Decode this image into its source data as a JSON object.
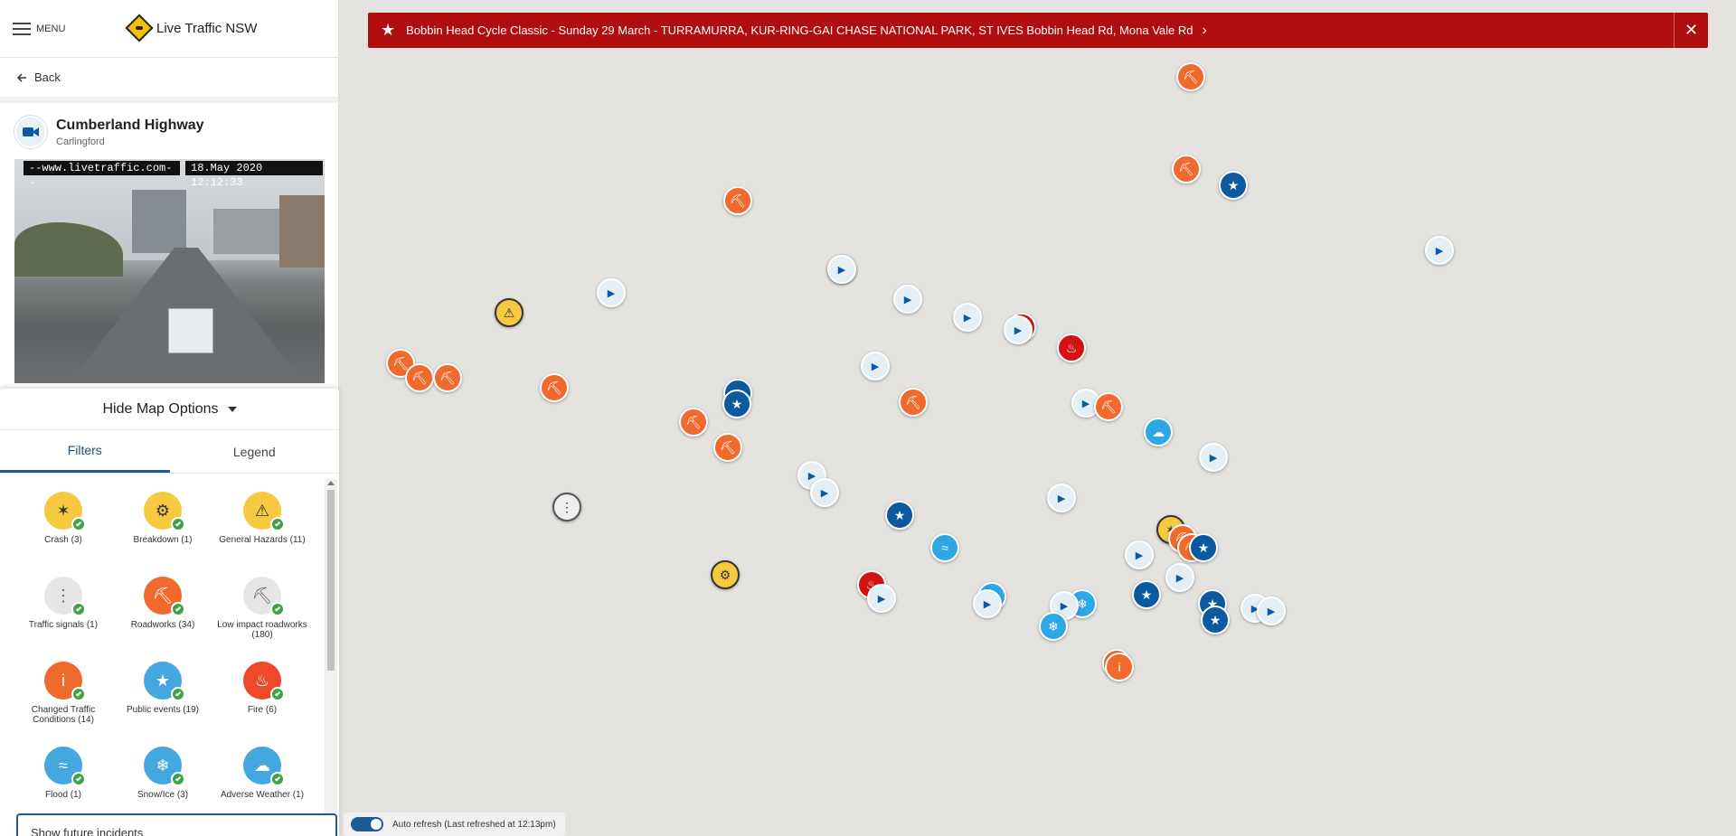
{
  "header": {
    "menu_label": "MENU",
    "brand": "Live Traffic NSW"
  },
  "back": {
    "label": "Back"
  },
  "camera": {
    "title": "Cumberland Highway",
    "suburb": "Carlingford",
    "overlay_site": "--www.livetraffic.com--",
    "overlay_datetime": "18.May 2020   12:12:33"
  },
  "map_options": {
    "toggle_label": "Hide Map Options",
    "tabs": {
      "filters": "Filters",
      "legend": "Legend"
    },
    "filters": [
      {
        "label": "Crash  (3)",
        "color": "#f7c940",
        "icon": "crash-icon",
        "glyph": "✶"
      },
      {
        "label": "Breakdown  (1)",
        "color": "#f7c940",
        "icon": "breakdown-icon",
        "glyph": "⚙"
      },
      {
        "label": "General Hazards  (11)",
        "color": "#f7c940",
        "icon": "hazard-icon",
        "glyph": "⚠"
      },
      {
        "label": "Traffic signals  (1)",
        "color": "#e6e6e6",
        "icon": "traffic-signal-icon",
        "glyph": "⋮"
      },
      {
        "label": "Roadworks  (34)",
        "color": "#ef6a2c",
        "icon": "roadworks-icon",
        "glyph": "⛏"
      },
      {
        "label": "Low impact roadworks (180)",
        "color": "#e6e6e6",
        "icon": "low-impact-roadworks-icon",
        "glyph": "⛏"
      },
      {
        "label": "Changed Traffic Conditions  (14)",
        "color": "#ef6a2c",
        "icon": "info-icon",
        "glyph": "i"
      },
      {
        "label": "Public events  (19)",
        "color": "#45a7e0",
        "icon": "star-icon",
        "glyph": "★"
      },
      {
        "label": "Fire  (6)",
        "color": "#ec4a2a",
        "icon": "fire-icon",
        "glyph": "♨"
      },
      {
        "label": "Flood  (1)",
        "color": "#45a7e0",
        "icon": "flood-icon",
        "glyph": "≈"
      },
      {
        "label": "Snow/Ice  (3)",
        "color": "#45a7e0",
        "icon": "snowflake-icon",
        "glyph": "❄"
      },
      {
        "label": "Adverse Weather  (1)",
        "color": "#45a7e0",
        "icon": "weather-icon",
        "glyph": "☁"
      }
    ],
    "search_text": "Show future incidents"
  },
  "alert": {
    "text": "Bobbin Head Cycle Classic - Sunday 29 March - TURRAMURRA, KUR-RING-GAI CHASE NATIONAL PARK, ST IVES Bobbin Head Rd, Mona Vale Rd"
  },
  "auto_refresh": {
    "label": "Auto refresh (Last refreshed at 12:13pm)"
  }
}
